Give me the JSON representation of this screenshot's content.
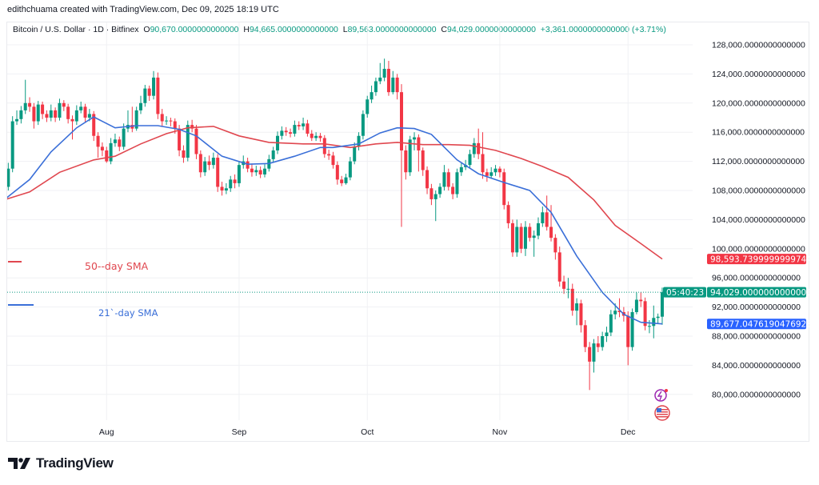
{
  "credit": "edithchuama created with TradingView.com, Dec 09, 2025 18:19 UTC",
  "legend": {
    "symbol": "Bitcoin / U.S. Dollar · 1D · Bitfinex",
    "o_label": "O",
    "o": "90,670.0000000000000",
    "h_label": "H",
    "h": "94,665.0000000000000",
    "l_label": "L",
    "l": "89,563.0000000000000",
    "c_label": "C",
    "c": "94,029.0000000000000",
    "change": "+3,361.0000000000000 (+3.71%)"
  },
  "brand": "TradingView",
  "colors": {
    "up": "#089981",
    "down": "#f23645",
    "sma50": "#e0474f",
    "sma21": "#3a6fd8",
    "grid": "#f0f1f4"
  },
  "icons": [
    "lightning-events-icon",
    "us-flag-economic-event-icon"
  ],
  "chart_data": {
    "type": "candlestick",
    "end_date": "2025-12-09",
    "interval": "1D",
    "ylim": [
      76000,
      130000
    ],
    "yticks": [
      128000,
      124000,
      120000,
      116000,
      112000,
      108000,
      104000,
      100000,
      96000,
      92000,
      88000,
      84000,
      80000
    ],
    "ytick_labels": [
      "128,000.0000000000000",
      "124,000.0000000000000",
      "120,000.0000000000000",
      "116,000.0000000000000",
      "112,000.0000000000000",
      "108,000.0000000000000",
      "104,000.0000000000000",
      "100,000.0000000000000",
      "96,000.0000000000000",
      "92,000.0000000000000",
      "88,000.0000000000000",
      "84,000.0000000000000",
      "80,000.0000000000000"
    ],
    "xticks": [
      {
        "label": "Aug",
        "date": "2025-08-01"
      },
      {
        "label": "Sep",
        "date": "2025-09-01"
      },
      {
        "label": "Oct",
        "date": "2025-10-01"
      },
      {
        "label": "Nov",
        "date": "2025-11-01"
      },
      {
        "label": "Dec",
        "date": "2025-12-01"
      }
    ],
    "grid": true,
    "ohlc": [
      [
        107000,
        109500,
        106500,
        108500
      ],
      [
        108500,
        111800,
        108000,
        111000
      ],
      [
        111000,
        118200,
        110500,
        117500
      ],
      [
        117500,
        119000,
        117000,
        117800
      ],
      [
        117800,
        119600,
        117200,
        119000
      ],
      [
        119000,
        123200,
        118500,
        120000
      ],
      [
        120000,
        120800,
        118800,
        119500
      ],
      [
        119500,
        120000,
        116500,
        117500
      ],
      [
        117500,
        120300,
        117000,
        119800
      ],
      [
        119800,
        120200,
        117800,
        118500
      ],
      [
        118500,
        119000,
        117400,
        118000
      ],
      [
        118000,
        119800,
        117500,
        119000
      ],
      [
        119000,
        119400,
        117400,
        118000
      ],
      [
        118000,
        120600,
        117600,
        120000
      ],
      [
        120000,
        120400,
        118900,
        119500
      ],
      [
        119500,
        119900,
        117200,
        117800
      ],
      [
        117800,
        118300,
        115000,
        117500
      ],
      [
        117500,
        119700,
        117000,
        119000
      ],
      [
        119000,
        120200,
        118600,
        119500
      ],
      [
        119500,
        119900,
        117400,
        118000
      ],
      [
        118000,
        119200,
        117500,
        118500
      ],
      [
        118500,
        118900,
        114800,
        115500
      ],
      [
        115500,
        116000,
        112500,
        114000
      ],
      [
        114000,
        114600,
        112700,
        113500
      ],
      [
        113500,
        114000,
        111800,
        112000
      ],
      [
        112000,
        115200,
        111600,
        114500
      ],
      [
        114500,
        115800,
        114000,
        115000
      ],
      [
        115000,
        115400,
        113400,
        114000
      ],
      [
        114000,
        117200,
        113600,
        116500
      ],
      [
        116500,
        119000,
        116000,
        117000
      ],
      [
        117000,
        119500,
        116000,
        116500
      ],
      [
        116500,
        119500,
        116200,
        119000
      ],
      [
        119000,
        121000,
        118500,
        120000
      ],
      [
        120000,
        122500,
        119500,
        122000
      ],
      [
        122000,
        122400,
        120300,
        121000
      ],
      [
        121000,
        124400,
        120500,
        123500
      ],
      [
        123500,
        124200,
        117800,
        118500
      ],
      [
        118500,
        119200,
        116800,
        117500
      ],
      [
        117500,
        118200,
        117000,
        117600
      ],
      [
        117600,
        118000,
        116800,
        117500
      ],
      [
        117500,
        117900,
        115800,
        116500
      ],
      [
        116500,
        117000,
        112700,
        113500
      ],
      [
        113500,
        114200,
        111800,
        112500
      ],
      [
        112500,
        117600,
        112000,
        117000
      ],
      [
        117000,
        117700,
        116000,
        116500
      ],
      [
        116500,
        117000,
        112300,
        113000
      ],
      [
        113000,
        113500,
        109800,
        110500
      ],
      [
        110500,
        112600,
        110000,
        112000
      ],
      [
        112000,
        112800,
        110800,
        111500
      ],
      [
        111500,
        113200,
        111000,
        112500
      ],
      [
        112500,
        113000,
        107800,
        108500
      ],
      [
        108500,
        109200,
        107300,
        108000
      ],
      [
        108000,
        109000,
        107500,
        108300
      ],
      [
        108300,
        110000,
        107800,
        109500
      ],
      [
        109500,
        110200,
        108300,
        109000
      ],
      [
        109000,
        112000,
        108500,
        111500
      ],
      [
        111500,
        112800,
        111000,
        112000
      ],
      [
        112000,
        112500,
        110500,
        111000
      ],
      [
        111000,
        111700,
        109900,
        110500
      ],
      [
        110500,
        111400,
        110000,
        110800
      ],
      [
        110800,
        111300,
        109700,
        110200
      ],
      [
        110200,
        111600,
        109800,
        111000
      ],
      [
        111000,
        112900,
        110600,
        112300
      ],
      [
        112300,
        114000,
        111800,
        113500
      ],
      [
        113500,
        116100,
        113000,
        115500
      ],
      [
        115500,
        116800,
        115000,
        116200
      ],
      [
        116200,
        116700,
        115500,
        116000
      ],
      [
        116000,
        116500,
        115300,
        115800
      ],
      [
        115800,
        117600,
        115400,
        117000
      ],
      [
        117000,
        117500,
        116300,
        116800
      ],
      [
        116800,
        118000,
        116300,
        117200
      ],
      [
        117200,
        117700,
        115400,
        115800
      ],
      [
        115800,
        116300,
        114800,
        115200
      ],
      [
        115200,
        116000,
        114800,
        115500
      ],
      [
        115500,
        115900,
        114700,
        115200
      ],
      [
        115200,
        115600,
        112500,
        113000
      ],
      [
        113000,
        113600,
        112200,
        112800
      ],
      [
        112800,
        113300,
        111000,
        111500
      ],
      [
        111500,
        112000,
        108800,
        109500
      ],
      [
        109500,
        110000,
        108600,
        109000
      ],
      [
        109000,
        110300,
        108800,
        109800
      ],
      [
        109800,
        112600,
        109400,
        112000
      ],
      [
        112000,
        114600,
        111600,
        114000
      ],
      [
        114000,
        116000,
        113500,
        115500
      ],
      [
        115500,
        119000,
        115000,
        118500
      ],
      [
        118500,
        121000,
        118000,
        120500
      ],
      [
        120500,
        122400,
        120000,
        121500
      ],
      [
        121500,
        123500,
        121000,
        123000
      ],
      [
        123000,
        125500,
        122600,
        123500
      ],
      [
        123500,
        126100,
        123000,
        124700
      ],
      [
        124700,
        125800,
        121000,
        121500
      ],
      [
        121500,
        124400,
        121200,
        123500
      ],
      [
        123500,
        124000,
        120500,
        121500
      ],
      [
        121500,
        122600,
        103000,
        113500
      ],
      [
        113500,
        114200,
        109500,
        110500
      ],
      [
        110500,
        115500,
        110000,
        115000
      ],
      [
        115000,
        116000,
        113500,
        115300
      ],
      [
        115300,
        115700,
        110600,
        113500
      ],
      [
        113500,
        113900,
        110000,
        110800
      ],
      [
        110800,
        111300,
        107500,
        108300
      ],
      [
        108300,
        108900,
        106000,
        106800
      ],
      [
        106800,
        108000,
        103800,
        107500
      ],
      [
        107500,
        109000,
        107000,
        108500
      ],
      [
        108500,
        111500,
        108000,
        110500
      ],
      [
        110500,
        111000,
        108000,
        108500
      ],
      [
        108500,
        109000,
        106800,
        107500
      ],
      [
        107500,
        111000,
        107000,
        110500
      ],
      [
        110500,
        111800,
        110000,
        111200
      ],
      [
        111200,
        112200,
        110800,
        111500
      ],
      [
        111500,
        113600,
        111000,
        113000
      ],
      [
        113000,
        115200,
        112500,
        114500
      ],
      [
        114500,
        116500,
        112300,
        113000
      ],
      [
        113000,
        116000,
        109600,
        110500
      ],
      [
        110500,
        111000,
        109200,
        110000
      ],
      [
        110000,
        111200,
        109600,
        110500
      ],
      [
        110500,
        111500,
        110000,
        111000
      ],
      [
        111000,
        111300,
        109800,
        110500
      ],
      [
        110500,
        111000,
        105400,
        106000
      ],
      [
        106000,
        106500,
        102800,
        103500
      ],
      [
        103500,
        104000,
        98900,
        99500
      ],
      [
        99500,
        104000,
        98900,
        103000
      ],
      [
        103000,
        103500,
        99400,
        100000
      ],
      [
        100000,
        103800,
        99000,
        103000
      ],
      [
        103000,
        103500,
        101000,
        101500
      ],
      [
        101500,
        102500,
        98900,
        101800
      ],
      [
        101800,
        104300,
        101300,
        103500
      ],
      [
        103500,
        105800,
        103000,
        105000
      ],
      [
        105000,
        107300,
        102500,
        103000
      ],
      [
        103000,
        106000,
        101000,
        101500
      ],
      [
        101500,
        102000,
        98500,
        99500
      ],
      [
        99500,
        100300,
        94800,
        95500
      ],
      [
        95500,
        96300,
        93800,
        94500
      ],
      [
        94500,
        96000,
        93200,
        94500
      ],
      [
        94500,
        95200,
        90800,
        91500
      ],
      [
        91500,
        93200,
        89500,
        92500
      ],
      [
        92500,
        93000,
        88500,
        89500
      ],
      [
        89500,
        90200,
        85800,
        86500
      ],
      [
        86500,
        87200,
        80600,
        84500
      ],
      [
        84500,
        87600,
        83000,
        87000
      ],
      [
        87000,
        88000,
        85800,
        86500
      ],
      [
        86500,
        88600,
        86000,
        88000
      ],
      [
        88000,
        89300,
        87200,
        88500
      ],
      [
        88500,
        91600,
        88000,
        91000
      ],
      [
        91000,
        92500,
        90300,
        91500
      ],
      [
        91500,
        93200,
        90600,
        91300
      ],
      [
        91300,
        92000,
        90000,
        90800
      ],
      [
        90800,
        91400,
        84000,
        86500
      ],
      [
        86500,
        91800,
        86000,
        91300
      ],
      [
        91300,
        94000,
        91000,
        93000
      ],
      [
        93000,
        94000,
        92000,
        92800
      ],
      [
        92800,
        93300,
        88800,
        89400
      ],
      [
        89400,
        90200,
        88400,
        89400
      ],
      [
        89400,
        92200,
        87700,
        90500
      ],
      [
        90500,
        91100,
        89800,
        90670
      ],
      [
        90670,
        94665,
        89563,
        94029
      ]
    ],
    "series": [
      {
        "name": "50--day SMA",
        "color": "#e0474f",
        "last_label": "98,593.7399999999744",
        "points": [
          [
            "2025-07-08",
            106700
          ],
          [
            "2025-07-14",
            107800
          ],
          [
            "2025-07-21",
            110500
          ],
          [
            "2025-07-29",
            112200
          ],
          [
            "2025-08-03",
            112700
          ],
          [
            "2025-08-09",
            114400
          ],
          [
            "2025-08-15",
            115800
          ],
          [
            "2025-08-20",
            116600
          ],
          [
            "2025-08-26",
            116800
          ],
          [
            "2025-09-01",
            115500
          ],
          [
            "2025-09-08",
            114600
          ],
          [
            "2025-09-16",
            114400
          ],
          [
            "2025-09-21",
            114400
          ],
          [
            "2025-09-27",
            113900
          ],
          [
            "2025-10-03",
            114400
          ],
          [
            "2025-10-08",
            114600
          ],
          [
            "2025-10-14",
            114300
          ],
          [
            "2025-10-20",
            114300
          ],
          [
            "2025-10-25",
            114200
          ],
          [
            "2025-10-31",
            113500
          ],
          [
            "2025-11-06",
            112400
          ],
          [
            "2025-11-11",
            111300
          ],
          [
            "2025-11-17",
            109800
          ],
          [
            "2025-11-23",
            106700
          ],
          [
            "2025-11-28",
            103200
          ],
          [
            "2025-12-04",
            100700
          ],
          [
            "2025-12-09",
            98594
          ]
        ]
      },
      {
        "name": "21`-day SMA",
        "color": "#3a6fd8",
        "last_label": "89,677.0476190476928",
        "points": [
          [
            "2025-07-08",
            106700
          ],
          [
            "2025-07-14",
            109500
          ],
          [
            "2025-07-19",
            113300
          ],
          [
            "2025-07-25",
            116600
          ],
          [
            "2025-07-29",
            118100
          ],
          [
            "2025-08-03",
            116600
          ],
          [
            "2025-08-08",
            116900
          ],
          [
            "2025-08-13",
            116900
          ],
          [
            "2025-08-18",
            116400
          ],
          [
            "2025-08-22",
            115500
          ],
          [
            "2025-08-28",
            112700
          ],
          [
            "2025-09-03",
            111600
          ],
          [
            "2025-09-08",
            111700
          ],
          [
            "2025-09-14",
            112700
          ],
          [
            "2025-09-20",
            113900
          ],
          [
            "2025-09-23",
            113900
          ],
          [
            "2025-09-29",
            114400
          ],
          [
            "2025-10-04",
            115900
          ],
          [
            "2025-10-08",
            116600
          ],
          [
            "2025-10-12",
            116500
          ],
          [
            "2025-10-16",
            115700
          ],
          [
            "2025-10-22",
            112200
          ],
          [
            "2025-10-27",
            110300
          ],
          [
            "2025-11-02",
            109100
          ],
          [
            "2025-11-08",
            108000
          ],
          [
            "2025-11-13",
            105000
          ],
          [
            "2025-11-19",
            99000
          ],
          [
            "2025-11-25",
            94000
          ],
          [
            "2025-11-30",
            91000
          ],
          [
            "2025-12-04",
            89900
          ],
          [
            "2025-12-09",
            89677
          ]
        ]
      }
    ],
    "last_price": {
      "value": 94029,
      "label": "94,029.0000000000000",
      "countdown": "05:40:23"
    }
  }
}
